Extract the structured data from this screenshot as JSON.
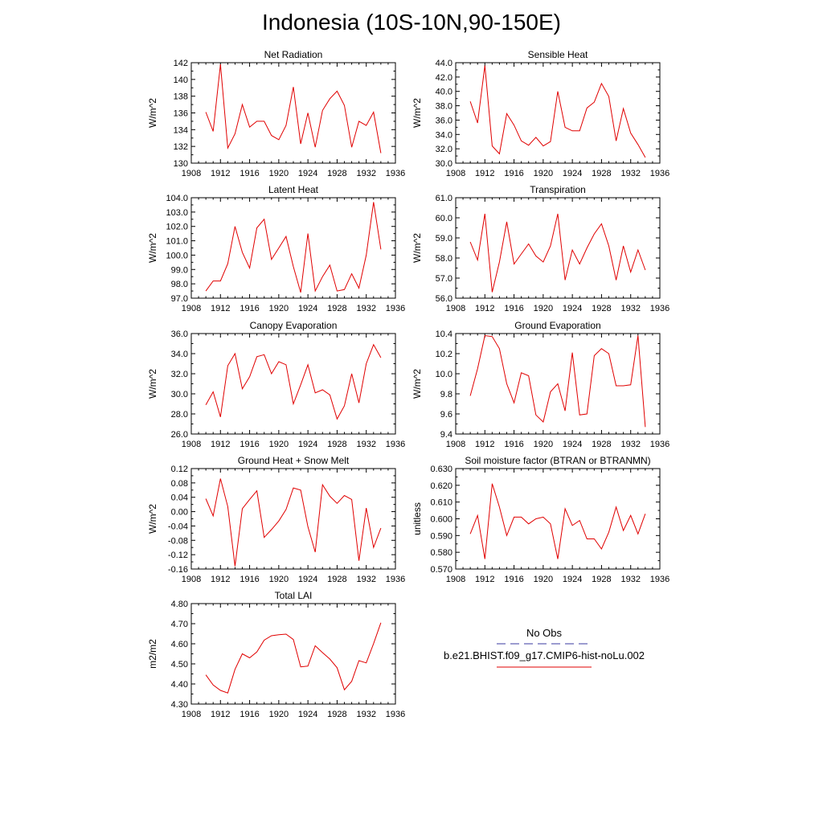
{
  "title": "Indonesia (10S-10N,90-150E)",
  "legend": {
    "items": [
      {
        "label": "No Obs",
        "color": "#3a3aa0",
        "style": "dashed"
      },
      {
        "label": "b.e21.BHIST.f09_g17.CMIP6-hist-noLu.002",
        "color": "#e00000",
        "style": "solid"
      }
    ]
  },
  "chart_data": [
    {
      "type": "line",
      "title": "Net Radiation",
      "ylabel": "W/m^2",
      "xlim": [
        1908,
        1936
      ],
      "ylim": [
        130,
        142
      ],
      "xticks": [
        1908,
        1912,
        1916,
        1920,
        1924,
        1928,
        1932,
        1936
      ],
      "yticks": [
        130,
        132,
        134,
        136,
        138,
        140,
        142
      ],
      "ytick_labels": [
        "130",
        "132",
        "134",
        "136",
        "138",
        "140",
        "142"
      ],
      "x": [
        1910,
        1911,
        1912,
        1913,
        1914,
        1915,
        1916,
        1917,
        1918,
        1919,
        1920,
        1921,
        1922,
        1923,
        1924,
        1925,
        1926,
        1927,
        1928,
        1929,
        1930,
        1931,
        1932,
        1933,
        1934
      ],
      "series": [
        {
          "color": "#e00000",
          "values": [
            136.1,
            133.8,
            141.8,
            131.8,
            133.5,
            137.0,
            134.3,
            135.0,
            135.0,
            133.3,
            132.8,
            134.5,
            139.1,
            132.3,
            136.0,
            131.9,
            136.3,
            137.7,
            138.6,
            136.9,
            131.9,
            135.0,
            134.5,
            136.1,
            131.2
          ]
        }
      ]
    },
    {
      "type": "line",
      "title": "Sensible Heat",
      "ylabel": "W/m^2",
      "xlim": [
        1908,
        1936
      ],
      "ylim": [
        30,
        44
      ],
      "xticks": [
        1908,
        1912,
        1916,
        1920,
        1924,
        1928,
        1932,
        1936
      ],
      "yticks": [
        30,
        32,
        34,
        36,
        38,
        40,
        42,
        44
      ],
      "ytick_labels": [
        "30.0",
        "32.0",
        "34.0",
        "36.0",
        "38.0",
        "40.0",
        "42.0",
        "44.0"
      ],
      "x": [
        1910,
        1911,
        1912,
        1913,
        1914,
        1915,
        1916,
        1917,
        1918,
        1919,
        1920,
        1921,
        1922,
        1923,
        1924,
        1925,
        1926,
        1927,
        1928,
        1929,
        1930,
        1931,
        1932,
        1933,
        1934
      ],
      "series": [
        {
          "color": "#e00000",
          "values": [
            38.6,
            35.6,
            43.6,
            32.4,
            31.3,
            36.9,
            35.3,
            33.1,
            32.5,
            33.6,
            32.4,
            33.0,
            40.0,
            35.0,
            34.5,
            34.5,
            37.7,
            38.5,
            41.1,
            39.3,
            33.1,
            37.6,
            34.2,
            32.6,
            30.8
          ]
        }
      ]
    },
    {
      "type": "line",
      "title": "Latent Heat",
      "ylabel": "W/m^2",
      "xlim": [
        1908,
        1936
      ],
      "ylim": [
        97,
        104
      ],
      "xticks": [
        1908,
        1912,
        1916,
        1920,
        1924,
        1928,
        1932,
        1936
      ],
      "yticks": [
        97,
        98,
        99,
        100,
        101,
        102,
        103,
        104
      ],
      "ytick_labels": [
        "97.0",
        "98.0",
        "99.0",
        "100.0",
        "101.0",
        "102.0",
        "103.0",
        "104.0"
      ],
      "x": [
        1910,
        1911,
        1912,
        1913,
        1914,
        1915,
        1916,
        1917,
        1918,
        1919,
        1920,
        1921,
        1922,
        1923,
        1924,
        1925,
        1926,
        1927,
        1928,
        1929,
        1930,
        1931,
        1932,
        1933,
        1934
      ],
      "series": [
        {
          "color": "#e00000",
          "values": [
            97.5,
            98.2,
            98.2,
            99.4,
            102.0,
            100.2,
            99.1,
            101.9,
            102.5,
            99.7,
            100.5,
            101.3,
            99.2,
            97.4,
            101.5,
            97.5,
            98.5,
            99.3,
            97.5,
            97.6,
            98.7,
            97.7,
            100.0,
            103.7,
            100.4
          ]
        }
      ]
    },
    {
      "type": "line",
      "title": "Transpiration",
      "ylabel": "W/m^2",
      "xlim": [
        1908,
        1936
      ],
      "ylim": [
        56,
        61
      ],
      "xticks": [
        1908,
        1912,
        1916,
        1920,
        1924,
        1928,
        1932,
        1936
      ],
      "yticks": [
        56,
        57,
        58,
        59,
        60,
        61
      ],
      "ytick_labels": [
        "56.0",
        "57.0",
        "58.0",
        "59.0",
        "60.0",
        "61.0"
      ],
      "x": [
        1910,
        1911,
        1912,
        1913,
        1914,
        1915,
        1916,
        1917,
        1918,
        1919,
        1920,
        1921,
        1922,
        1923,
        1924,
        1925,
        1926,
        1927,
        1928,
        1929,
        1930,
        1931,
        1932,
        1933,
        1934
      ],
      "series": [
        {
          "color": "#e00000",
          "values": [
            58.8,
            57.9,
            60.2,
            56.3,
            57.8,
            59.8,
            57.7,
            58.2,
            58.7,
            58.1,
            57.8,
            58.6,
            60.2,
            56.9,
            58.4,
            57.7,
            58.5,
            59.2,
            59.7,
            58.6,
            56.9,
            58.6,
            57.3,
            58.4,
            57.4
          ]
        }
      ]
    },
    {
      "type": "line",
      "title": "Canopy Evaporation",
      "ylabel": "W/m^2",
      "xlim": [
        1908,
        1936
      ],
      "ylim": [
        26,
        36
      ],
      "xticks": [
        1908,
        1912,
        1916,
        1920,
        1924,
        1928,
        1932,
        1936
      ],
      "yticks": [
        26,
        28,
        30,
        32,
        34,
        36
      ],
      "ytick_labels": [
        "26.0",
        "28.0",
        "30.0",
        "32.0",
        "34.0",
        "36.0"
      ],
      "x": [
        1910,
        1911,
        1912,
        1913,
        1914,
        1915,
        1916,
        1917,
        1918,
        1919,
        1920,
        1921,
        1922,
        1923,
        1924,
        1925,
        1926,
        1927,
        1928,
        1929,
        1930,
        1931,
        1932,
        1933,
        1934
      ],
      "series": [
        {
          "color": "#e00000",
          "values": [
            28.9,
            30.2,
            27.7,
            32.8,
            34.0,
            30.5,
            31.7,
            33.7,
            33.9,
            32.0,
            33.2,
            32.9,
            29.0,
            30.9,
            32.9,
            30.1,
            30.4,
            29.9,
            27.5,
            28.8,
            32.0,
            29.1,
            33.0,
            34.9,
            33.6
          ]
        }
      ]
    },
    {
      "type": "line",
      "title": "Ground Evaporation",
      "ylabel": "W/m^2",
      "xlim": [
        1908,
        1936
      ],
      "ylim": [
        9.4,
        10.4
      ],
      "xticks": [
        1908,
        1912,
        1916,
        1920,
        1924,
        1928,
        1932,
        1936
      ],
      "yticks": [
        9.4,
        9.6,
        9.8,
        10.0,
        10.2,
        10.4
      ],
      "ytick_labels": [
        "9.4",
        "9.6",
        "9.8",
        "10.0",
        "10.2",
        "10.4"
      ],
      "x": [
        1910,
        1911,
        1912,
        1913,
        1914,
        1915,
        1916,
        1917,
        1918,
        1919,
        1920,
        1921,
        1922,
        1923,
        1924,
        1925,
        1926,
        1927,
        1928,
        1929,
        1930,
        1931,
        1932,
        1933,
        1934
      ],
      "series": [
        {
          "color": "#e00000",
          "values": [
            9.78,
            10.05,
            10.38,
            10.37,
            10.25,
            9.9,
            9.71,
            10.01,
            9.98,
            9.59,
            9.52,
            9.82,
            9.9,
            9.63,
            10.21,
            9.59,
            9.6,
            10.18,
            10.25,
            10.2,
            9.88,
            9.88,
            9.89,
            10.38,
            9.47
          ]
        }
      ]
    },
    {
      "type": "line",
      "title": "Ground Heat + Snow Melt",
      "ylabel": "W/m^2",
      "xlim": [
        1908,
        1936
      ],
      "ylim": [
        -0.16,
        0.12
      ],
      "xticks": [
        1908,
        1912,
        1916,
        1920,
        1924,
        1928,
        1932,
        1936
      ],
      "yticks": [
        -0.16,
        -0.12,
        -0.08,
        -0.04,
        0.0,
        0.04,
        0.08,
        0.12
      ],
      "ytick_labels": [
        "-0.16",
        "-0.12",
        "-0.08",
        "-0.04",
        "0.00",
        "0.04",
        "0.08",
        "0.12"
      ],
      "x": [
        1910,
        1911,
        1912,
        1913,
        1914,
        1915,
        1916,
        1917,
        1918,
        1919,
        1920,
        1921,
        1922,
        1923,
        1924,
        1925,
        1926,
        1927,
        1928,
        1929,
        1930,
        1931,
        1932,
        1933,
        1934
      ],
      "series": [
        {
          "color": "#e00000",
          "values": [
            0.036,
            -0.012,
            0.092,
            0.014,
            -0.152,
            0.008,
            0.034,
            0.058,
            -0.072,
            -0.05,
            -0.026,
            0.006,
            0.066,
            0.06,
            -0.042,
            -0.113,
            0.075,
            0.043,
            0.023,
            0.045,
            0.034,
            -0.137,
            0.01,
            -0.1,
            -0.046
          ]
        }
      ]
    },
    {
      "type": "line",
      "title": "Soil moisture factor (BTRAN or BTRANMN)",
      "ylabel": "unitless",
      "xlim": [
        1908,
        1936
      ],
      "ylim": [
        0.57,
        0.63
      ],
      "xticks": [
        1908,
        1912,
        1916,
        1920,
        1924,
        1928,
        1932,
        1936
      ],
      "yticks": [
        0.57,
        0.58,
        0.59,
        0.6,
        0.61,
        0.62,
        0.63
      ],
      "ytick_labels": [
        "0.570",
        "0.580",
        "0.590",
        "0.600",
        "0.610",
        "0.620",
        "0.630"
      ],
      "x": [
        1910,
        1911,
        1912,
        1913,
        1914,
        1915,
        1916,
        1917,
        1918,
        1919,
        1920,
        1921,
        1922,
        1923,
        1924,
        1925,
        1926,
        1927,
        1928,
        1929,
        1930,
        1931,
        1932,
        1933,
        1934
      ],
      "series": [
        {
          "color": "#e00000",
          "values": [
            0.591,
            0.602,
            0.576,
            0.621,
            0.607,
            0.59,
            0.601,
            0.601,
            0.597,
            0.6,
            0.601,
            0.597,
            0.576,
            0.606,
            0.596,
            0.599,
            0.588,
            0.588,
            0.582,
            0.592,
            0.607,
            0.593,
            0.602,
            0.591,
            0.603
          ]
        }
      ]
    },
    {
      "type": "line",
      "title": "Total LAI",
      "ylabel": "m2/m2",
      "xlim": [
        1908,
        1936
      ],
      "ylim": [
        4.3,
        4.8
      ],
      "xticks": [
        1908,
        1912,
        1916,
        1920,
        1924,
        1928,
        1932,
        1936
      ],
      "yticks": [
        4.3,
        4.4,
        4.5,
        4.6,
        4.7,
        4.8
      ],
      "ytick_labels": [
        "4.30",
        "4.40",
        "4.50",
        "4.60",
        "4.70",
        "4.80"
      ],
      "x": [
        1910,
        1911,
        1912,
        1913,
        1914,
        1915,
        1916,
        1917,
        1918,
        1919,
        1920,
        1921,
        1922,
        1923,
        1924,
        1925,
        1926,
        1927,
        1928,
        1929,
        1930,
        1931,
        1932,
        1933,
        1934
      ],
      "series": [
        {
          "color": "#e00000",
          "values": [
            4.445,
            4.395,
            4.368,
            4.355,
            4.473,
            4.55,
            4.53,
            4.559,
            4.618,
            4.64,
            4.645,
            4.648,
            4.621,
            4.485,
            4.489,
            4.59,
            4.556,
            4.524,
            4.481,
            4.371,
            4.413,
            4.516,
            4.505,
            4.601,
            4.705
          ]
        }
      ]
    }
  ]
}
